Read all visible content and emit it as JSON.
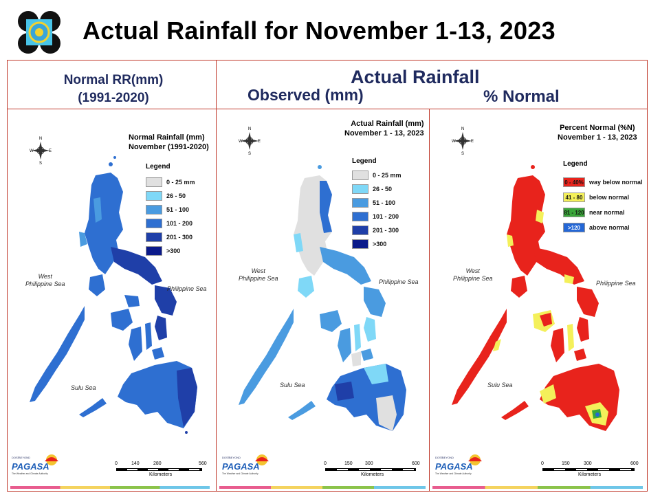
{
  "title": "Actual Rainfall for November 1-13, 2023",
  "header": {
    "normal_line1": "Normal RR(mm)",
    "normal_line2": "(1991-2020)",
    "actual": "Actual Rainfall",
    "observed": "Observed (mm)",
    "percent": "% Normal"
  },
  "panels": [
    {
      "title_line1": "Normal Rainfall (mm)",
      "title_line2": "November (1991-2020)",
      "legend_title": "Legend",
      "legend": [
        {
          "label": "0 - 25 mm",
          "color": "#e0e0e0"
        },
        {
          "label": "26 - 50",
          "color": "#7fd8f7"
        },
        {
          "label": "51 - 100",
          "color": "#4a9be0"
        },
        {
          "label": "101 - 200",
          "color": "#2e6fd1"
        },
        {
          "label": "201 - 300",
          "color": "#1f3fa8"
        },
        {
          "label": ">300",
          "color": "#0b1a8a"
        }
      ],
      "scale": [
        "0",
        "140",
        "280",
        "560"
      ],
      "scale_unit": "Kilometers"
    },
    {
      "title_line1": "Actual Rainfall (mm)",
      "title_line2": "November 1 - 13, 2023",
      "legend_title": "Legend",
      "legend": [
        {
          "label": "0 - 25 mm",
          "color": "#e0e0e0"
        },
        {
          "label": "26 - 50",
          "color": "#7fd8f7"
        },
        {
          "label": "51 - 100",
          "color": "#4a9be0"
        },
        {
          "label": "101 - 200",
          "color": "#2e6fd1"
        },
        {
          "label": "201 - 300",
          "color": "#1f3fa8"
        },
        {
          "label": ">300",
          "color": "#0b1a8a"
        }
      ],
      "scale": [
        "0",
        "150",
        "300",
        "600"
      ],
      "scale_unit": "Kilometers"
    },
    {
      "title_line1": "Percent Normal (%N)",
      "title_line2": "November 1 - 13, 2023",
      "legend_title": "Legend",
      "legend": [
        {
          "swatch": "0 - 40%",
          "label": "way below normal",
          "color": "#e8231c"
        },
        {
          "swatch": "41 - 80",
          "label": "below normal",
          "color": "#f4f05a"
        },
        {
          "swatch": "81 - 120",
          "label": "near normal",
          "color": "#3aa63a"
        },
        {
          "swatch": ">120",
          "label": "above normal",
          "color": "#2467d6"
        }
      ],
      "scale": [
        "0",
        "150",
        "300",
        "600"
      ],
      "scale_unit": "Kilometers"
    }
  ],
  "seas": {
    "west_line1": "West",
    "west_line2": "Philippine Sea",
    "east": "Philippine Sea",
    "sulu": "Sulu Sea"
  },
  "compass": {
    "n": "N",
    "s": "S",
    "e": "E",
    "w": "W"
  },
  "logo": {
    "brand": "PAGASA",
    "dost": "DOST",
    "beyond": "BEYOND",
    "tagline": "The Weather and Climate Authority"
  },
  "colors": {
    "header_text": "#1f2a5e",
    "frame": "#c0392b"
  }
}
